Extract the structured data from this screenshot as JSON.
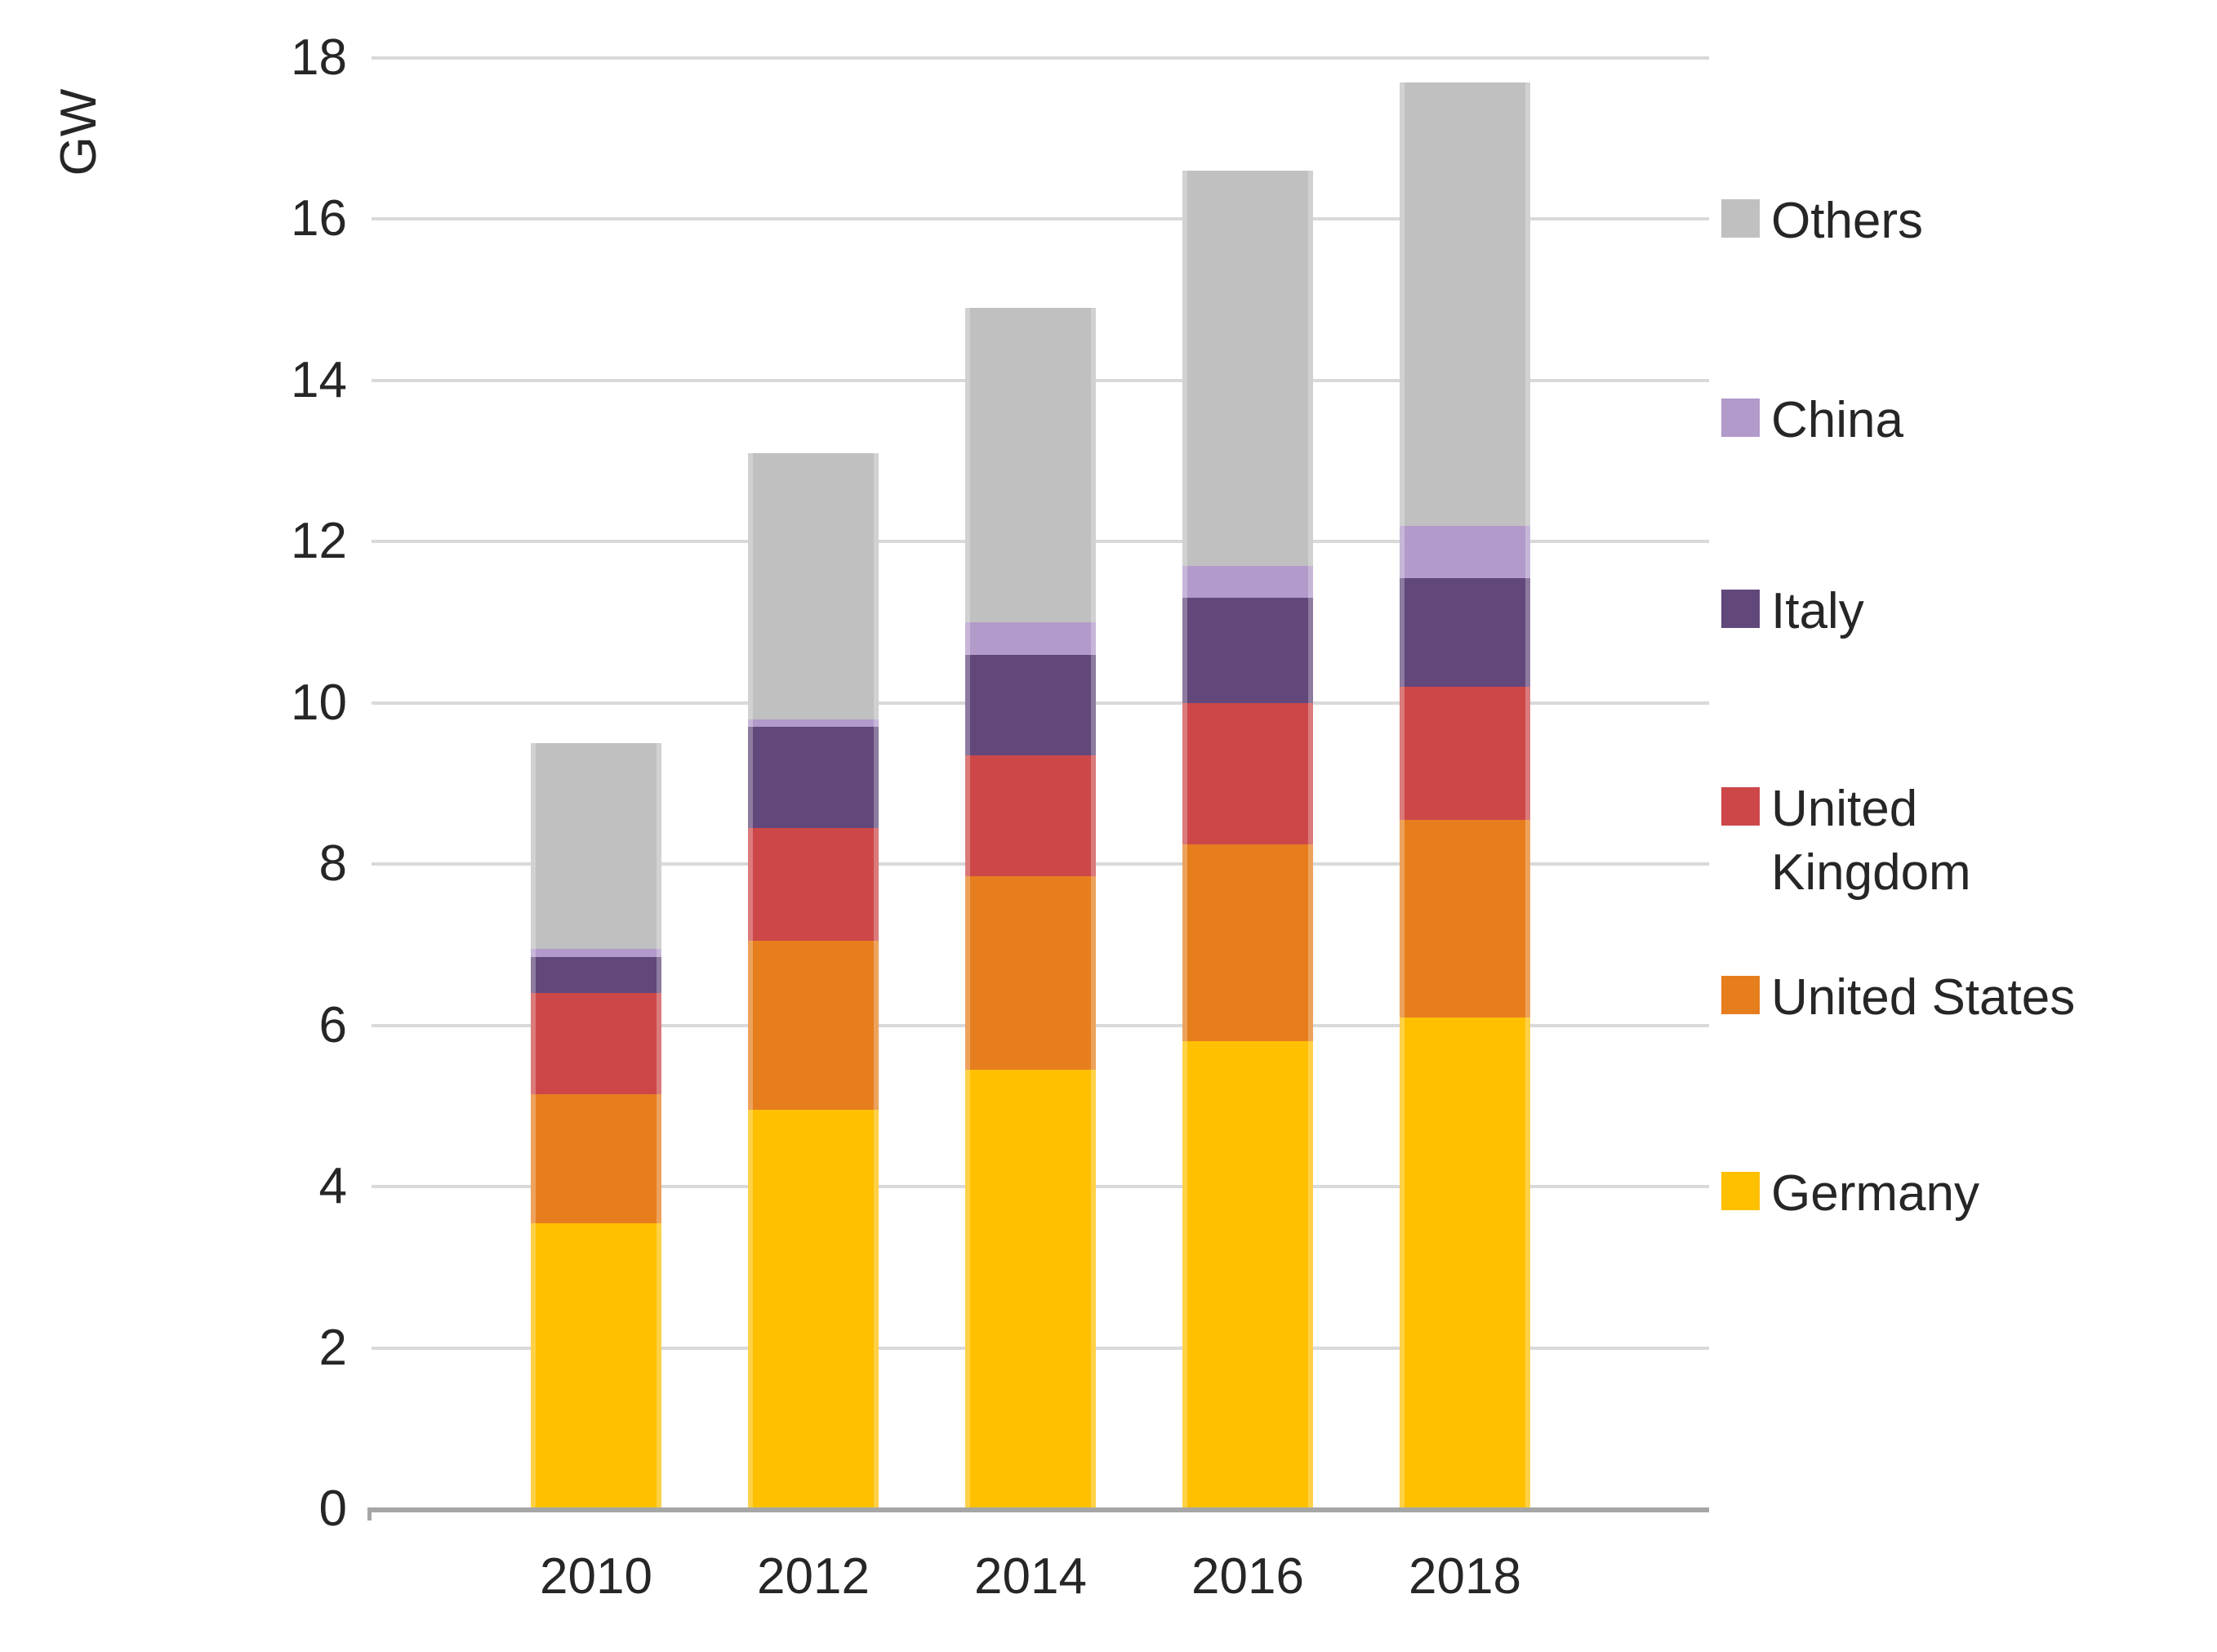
{
  "chart_data": {
    "type": "bar",
    "stacked": true,
    "title": "",
    "unit_label": "GW",
    "xlabel": "",
    "ylabel": "GW",
    "categories": [
      "2010",
      "2012",
      "2014",
      "2016",
      "2018"
    ],
    "series": [
      {
        "name": "Germany",
        "color": "#FFC000",
        "values": [
          3.55,
          4.95,
          5.45,
          5.8,
          6.1
        ]
      },
      {
        "name": "United States",
        "color": "#E67E1E",
        "values": [
          1.6,
          2.1,
          2.4,
          2.45,
          2.45
        ]
      },
      {
        "name": "United Kingdom",
        "color": "#CD4749",
        "values": [
          1.25,
          1.4,
          1.5,
          1.75,
          1.65
        ]
      },
      {
        "name": "Italy",
        "color": "#61477A",
        "values": [
          0.45,
          1.25,
          1.25,
          1.3,
          1.35
        ]
      },
      {
        "name": "China",
        "color": "#B29ACA",
        "values": [
          0.1,
          0.1,
          0.4,
          0.4,
          0.65
        ]
      },
      {
        "name": "Others",
        "color": "#C0C0C0",
        "values": [
          2.55,
          3.3,
          3.9,
          4.9,
          5.5
        ]
      }
    ],
    "ylim": [
      0,
      18
    ],
    "ytick_step": 2,
    "yticks": [
      "0",
      "2",
      "4",
      "6",
      "8",
      "10",
      "12",
      "14",
      "16",
      "18"
    ],
    "grid": true,
    "legend_position": "right",
    "legend_order": [
      "Others",
      "China",
      "Italy",
      "United Kingdom",
      "United States",
      "Germany"
    ],
    "colors": {
      "gridline": "#D9D9D9",
      "axis_line": "#A6A6A6",
      "text": "#262626"
    }
  }
}
